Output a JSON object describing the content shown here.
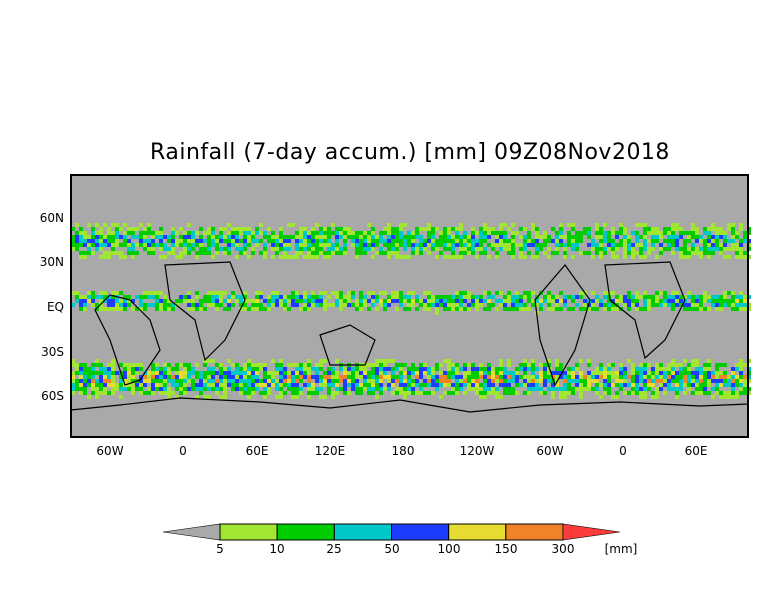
{
  "title": "Rainfall (7-day accum.) [mm] 09Z08Nov2018",
  "lat_labels": [
    "60N",
    "30N",
    "EQ",
    "30S",
    "60S"
  ],
  "lon_labels": [
    "60W",
    "0",
    "60E",
    "120E",
    "180",
    "120W",
    "60W",
    "0",
    "60E"
  ],
  "colorbar": {
    "unit": "[mm]",
    "thresholds": [
      "5",
      "10",
      "25",
      "50",
      "100",
      "150",
      "300"
    ],
    "colors": [
      "#a9a9a9",
      "#a3e632",
      "#00cc00",
      "#00c8c8",
      "#1e3cff",
      "#e6dc32",
      "#f08228",
      "#fa3c3c"
    ]
  },
  "colors": {
    "background_land_ocean": "#a9a9a9",
    "coastline": "#000000"
  }
}
